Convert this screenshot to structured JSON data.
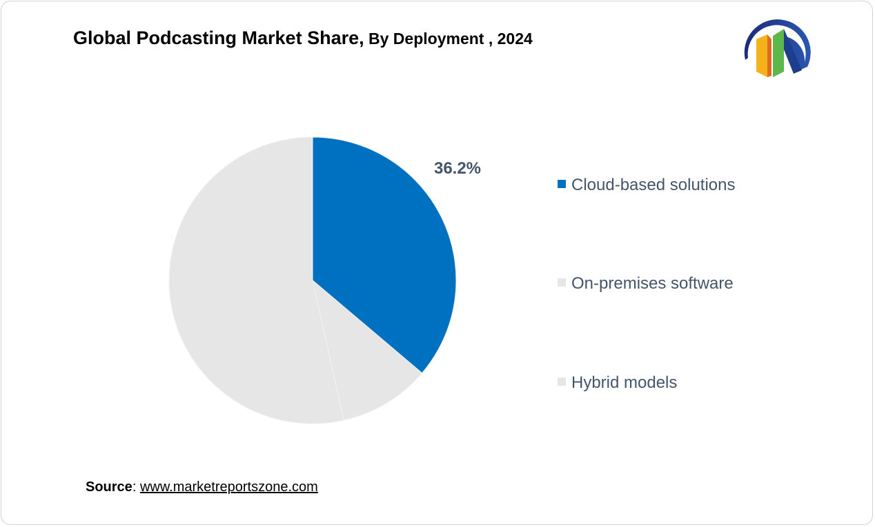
{
  "title_main": "Global Podcasting  Market Share,",
  "title_sub": " By Deployment , 2024",
  "source_label": "Source",
  "source_sep": ": ",
  "source_url": "www.marketreportszone.com",
  "colors": {
    "cloud": "#0070c0",
    "other": "#e6e6e6",
    "label": "#44546a"
  },
  "chart_data": {
    "type": "pie",
    "title": "Global Podcasting Market Share, By Deployment , 2024",
    "categories": [
      "Cloud-based solutions",
      "On-premises software",
      "Hybrid models"
    ],
    "values": [
      36.2,
      10.3,
      53.5
    ],
    "data_labels": [
      "36.2%",
      "",
      ""
    ],
    "colors": [
      "#0070c0",
      "#e6e6e6",
      "#e6e6e6"
    ],
    "legend_position": "right"
  }
}
